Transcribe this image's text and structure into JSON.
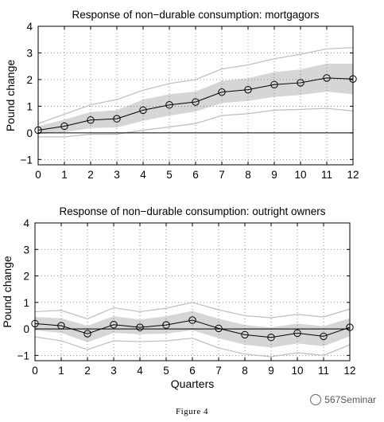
{
  "chart_data": [
    {
      "type": "line",
      "title": "Response of non−durable consumption: mortgagors",
      "xlabel": "",
      "ylabel": "Pound change",
      "x": [
        0,
        1,
        2,
        3,
        4,
        5,
        6,
        7,
        8,
        9,
        10,
        11,
        12
      ],
      "xticks": [
        "0",
        "1",
        "2",
        "3",
        "4",
        "5",
        "6",
        "7",
        "8",
        "9",
        "10",
        "11",
        "12"
      ],
      "yticks": [
        "−1",
        "0",
        "1",
        "2",
        "3",
        "4"
      ],
      "ylim": [
        -1.2,
        4
      ],
      "xlim": [
        0,
        12
      ],
      "grid": true,
      "series": [
        {
          "role": "estimate",
          "values": [
            0.1,
            0.25,
            0.48,
            0.53,
            0.85,
            1.05,
            1.16,
            1.53,
            1.62,
            1.81,
            1.88,
            2.06,
            2.02
          ]
        },
        {
          "role": "inner_band_lower",
          "values": [
            -0.05,
            0.02,
            0.18,
            0.2,
            0.45,
            0.65,
            0.8,
            1.12,
            1.2,
            1.35,
            1.42,
            1.55,
            1.45
          ]
        },
        {
          "role": "inner_band_upper",
          "values": [
            0.25,
            0.5,
            0.78,
            0.85,
            1.25,
            1.45,
            1.55,
            1.95,
            2.05,
            2.28,
            2.38,
            2.6,
            2.6
          ]
        },
        {
          "role": "outer_band_lower",
          "values": [
            -0.15,
            -0.15,
            -0.05,
            -0.05,
            0.1,
            0.22,
            0.35,
            0.65,
            0.72,
            0.85,
            0.88,
            0.92,
            0.82
          ]
        },
        {
          "role": "outer_band_upper",
          "values": [
            0.35,
            0.7,
            1.05,
            1.25,
            1.6,
            1.85,
            2.0,
            2.4,
            2.55,
            2.78,
            2.95,
            3.15,
            3.2
          ]
        }
      ]
    },
    {
      "type": "line",
      "title": "Response of non−durable consumption: outright owners",
      "xlabel": "Quarters",
      "ylabel": "Pound change",
      "x": [
        0,
        1,
        2,
        3,
        4,
        5,
        6,
        7,
        8,
        9,
        10,
        11,
        12
      ],
      "xticks": [
        "0",
        "1",
        "2",
        "3",
        "4",
        "5",
        "6",
        "7",
        "8",
        "9",
        "10",
        "11",
        "12"
      ],
      "yticks": [
        "−1",
        "0",
        "1",
        "2",
        "3",
        "4"
      ],
      "ylim": [
        -1.2,
        4
      ],
      "xlim": [
        0,
        12
      ],
      "grid": true,
      "series": [
        {
          "role": "estimate",
          "values": [
            0.2,
            0.12,
            -0.18,
            0.16,
            0.06,
            0.15,
            0.33,
            0.02,
            -0.22,
            -0.32,
            -0.16,
            -0.28,
            0.06
          ]
        },
        {
          "role": "inner_band_lower",
          "values": [
            -0.05,
            -0.15,
            -0.5,
            -0.15,
            -0.2,
            -0.18,
            -0.05,
            -0.35,
            -0.6,
            -0.7,
            -0.55,
            -0.65,
            -0.28
          ]
        },
        {
          "role": "inner_band_upper",
          "values": [
            0.45,
            0.4,
            0.12,
            0.48,
            0.35,
            0.48,
            0.68,
            0.38,
            0.15,
            0.05,
            0.2,
            0.1,
            0.4
          ]
        },
        {
          "role": "outer_band_lower",
          "values": [
            -0.3,
            -0.45,
            -0.78,
            -0.45,
            -0.48,
            -0.45,
            -0.35,
            -0.72,
            -0.95,
            -1.05,
            -0.9,
            -1.0,
            -0.6
          ]
        },
        {
          "role": "outer_band_upper",
          "values": [
            0.65,
            0.7,
            0.38,
            0.8,
            0.65,
            0.78,
            1.0,
            0.72,
            0.5,
            0.42,
            0.55,
            0.45,
            0.75
          ]
        }
      ]
    }
  ],
  "caption": "Figure 4",
  "watermark": "567Seminar"
}
